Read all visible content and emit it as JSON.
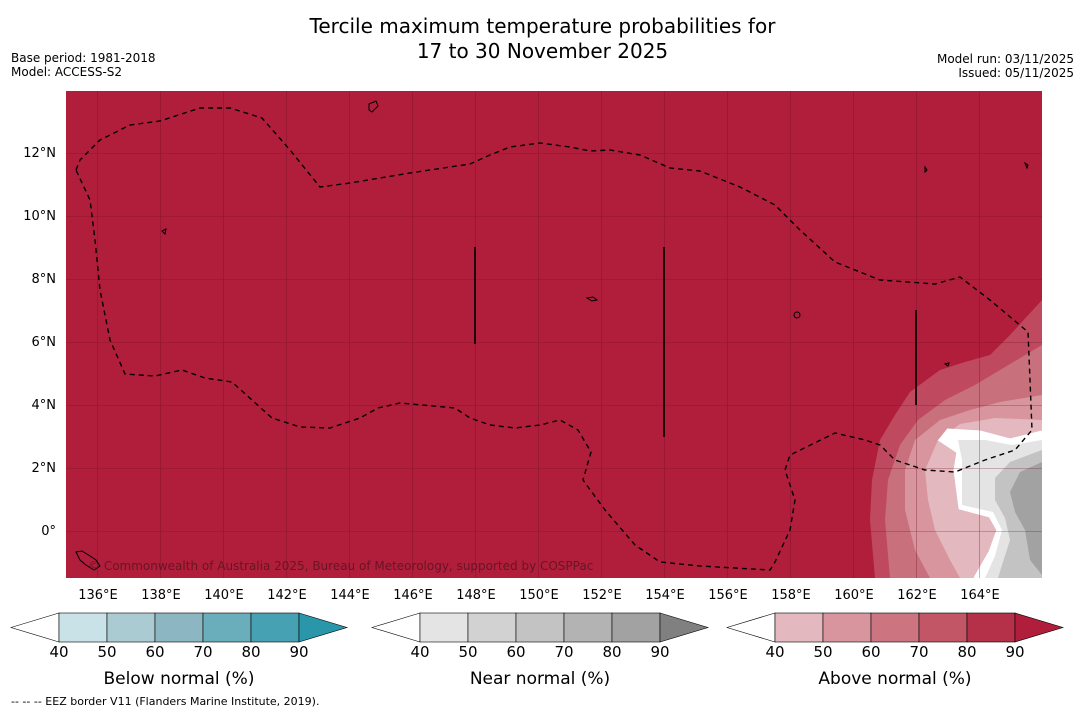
{
  "header": {
    "title_line1": "Tercile maximum temperature probabilities for",
    "title_line2": "17 to 30 November 2025",
    "base_period": "Base period: 1981-2018",
    "model": "Model: ACCESS-S2",
    "model_run": "Model run: 03/11/2025",
    "issued": "Issued: 05/11/2025"
  },
  "map": {
    "x_ticks": [
      "136°E",
      "138°E",
      "140°E",
      "142°E",
      "144°E",
      "146°E",
      "148°E",
      "150°E",
      "152°E",
      "154°E",
      "156°E",
      "158°E",
      "160°E",
      "162°E",
      "164°E"
    ],
    "y_ticks": [
      "12°N",
      "10°N",
      "8°N",
      "6°N",
      "4°N",
      "2°N",
      "0°"
    ],
    "copyright": "© Commonwealth of Australia 2025, Bureau of Meteorology, supported by COSPPac",
    "background_color": "#b01e3c"
  },
  "colorbars": [
    {
      "title": "Below normal (%)",
      "ticks": [
        "40",
        "50",
        "60",
        "70",
        "80",
        "90"
      ],
      "colors": [
        "#ffffff",
        "#c9e2e8",
        "#abcbd2",
        "#8cb7c2",
        "#6aadbb",
        "#46a1b2",
        "#2a96aa"
      ]
    },
    {
      "title": "Near normal (%)",
      "ticks": [
        "40",
        "50",
        "60",
        "70",
        "80",
        "90"
      ],
      "colors": [
        "#ffffff",
        "#e4e4e4",
        "#d2d2d2",
        "#c3c3c3",
        "#b3b3b3",
        "#a2a2a2",
        "#808080"
      ]
    },
    {
      "title": "Above normal (%)",
      "ticks": [
        "40",
        "50",
        "60",
        "70",
        "80",
        "90"
      ],
      "colors": [
        "#ffffff",
        "#e4b8bf",
        "#d8959e",
        "#cc7580",
        "#c25566",
        "#b53149",
        "#b01e3c"
      ]
    }
  ],
  "footer": {
    "eez_note": "--  --  -- EEZ border V11 (Flanders Marine Institute, 2019)."
  }
}
